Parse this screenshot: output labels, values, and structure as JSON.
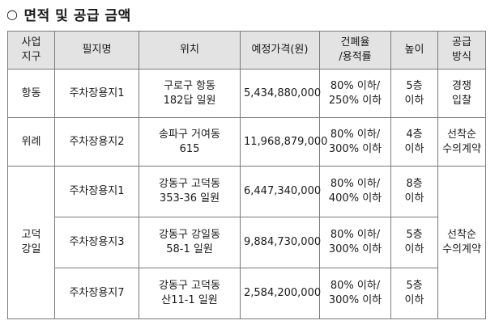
{
  "section": {
    "marker": "○",
    "title": "면적 및 공급 금액"
  },
  "table": {
    "headers": [
      [
        "사업",
        "지구"
      ],
      [
        "필지명"
      ],
      [
        "위치"
      ],
      [
        "예정가격(원)"
      ],
      [
        "건폐율",
        "/용적률"
      ],
      [
        "높이"
      ],
      [
        "공급",
        "방식"
      ]
    ],
    "rows": [
      {
        "district": [
          "항동"
        ],
        "lot": "주차장용지1",
        "location": [
          "구로구 항동",
          "182답 일원"
        ],
        "price": "5,434,880,000",
        "ratio": [
          "80% 이하/",
          "250% 이하"
        ],
        "height": [
          "5층",
          "이하"
        ],
        "method": [
          "경쟁",
          "입찰"
        ]
      },
      {
        "district": [
          "위례"
        ],
        "lot": "주차장용지2",
        "location": [
          "송파구 거여동",
          "615"
        ],
        "price": "11,968,879,000",
        "ratio": [
          "80% 이하/",
          "300% 이하"
        ],
        "height": [
          "4층",
          "이하"
        ],
        "method": [
          "선착순",
          "수의계약"
        ]
      },
      {
        "district": [
          "고덕",
          "강일"
        ],
        "lot": "주차장용지1",
        "location": [
          "강동구 고덕동",
          "353-36 일원"
        ],
        "price": "6,447,340,000",
        "ratio": [
          "80% 이하/",
          "400% 이하"
        ],
        "height": [
          "8층",
          "이하"
        ],
        "method": [
          "선착순",
          "수의계약"
        ]
      },
      {
        "lot": "주차장용지3",
        "location": [
          "강동구 강일동",
          "58-1 일원"
        ],
        "price": "9,884,730,000",
        "ratio": [
          "80% 이하/",
          "300% 이하"
        ],
        "height": [
          "5층",
          "이하"
        ]
      },
      {
        "lot": "주차장용지7",
        "location": [
          "강동구 고덕동",
          "산11-1 일원"
        ],
        "price": "2,584,200,000",
        "ratio": [
          "80% 이하/",
          "300% 이하"
        ],
        "height": [
          "5층",
          "이하"
        ]
      }
    ]
  }
}
